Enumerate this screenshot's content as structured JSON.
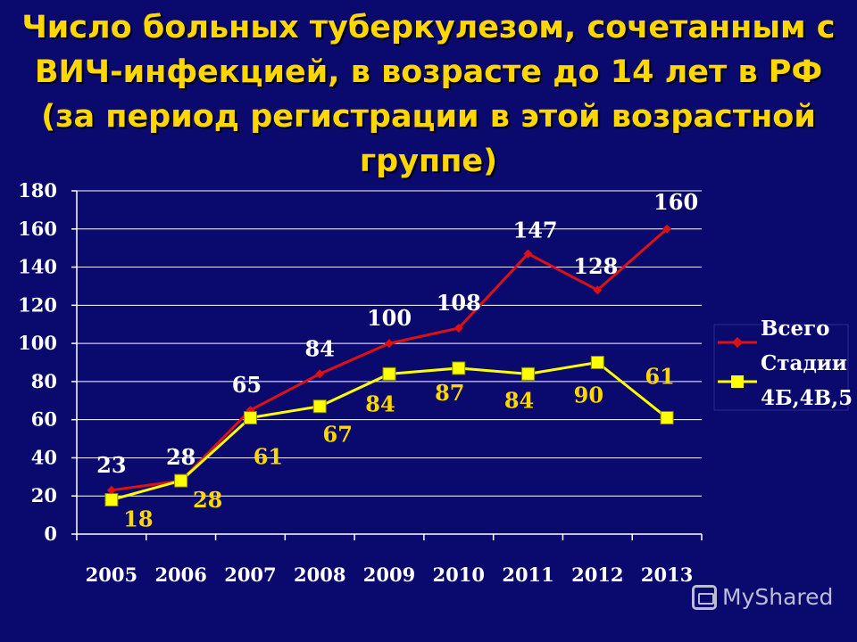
{
  "title": "Число больных туберкулезом, сочетанным с ВИЧ-инфекцией, в возрасте до 14 лет в РФ (за период регистрации в этой возрастной группе)",
  "watermark": "MyShared",
  "chart_data": {
    "type": "line",
    "categories": [
      "2005",
      "2006",
      "2007",
      "2008",
      "2009",
      "2010",
      "2011",
      "2012",
      "2013"
    ],
    "ylim": [
      0,
      180
    ],
    "yticks": [
      0,
      20,
      40,
      60,
      80,
      100,
      120,
      140,
      160,
      180
    ],
    "grid": true,
    "legend_position": "right",
    "series": [
      {
        "name": "Всего",
        "values": [
          23,
          28,
          65,
          84,
          100,
          108,
          147,
          128,
          160
        ],
        "color": "#dd1111",
        "marker": "diamond"
      },
      {
        "name": "Стадии 4Б,4В,5",
        "values": [
          18,
          28,
          61,
          67,
          84,
          87,
          84,
          90,
          61
        ],
        "color": "#ffff00",
        "marker": "square"
      }
    ],
    "labels_total": [
      "23",
      "28",
      "65",
      "84",
      "100",
      "108",
      "147",
      "128",
      "160"
    ],
    "labels_stage": [
      "18",
      "28",
      "61",
      "67",
      "84",
      "87",
      "84",
      "90",
      "61"
    ],
    "legend": {
      "total": "Всего",
      "stage_line1": "Стадии",
      "stage_line2": "4Б,4В,5"
    }
  }
}
